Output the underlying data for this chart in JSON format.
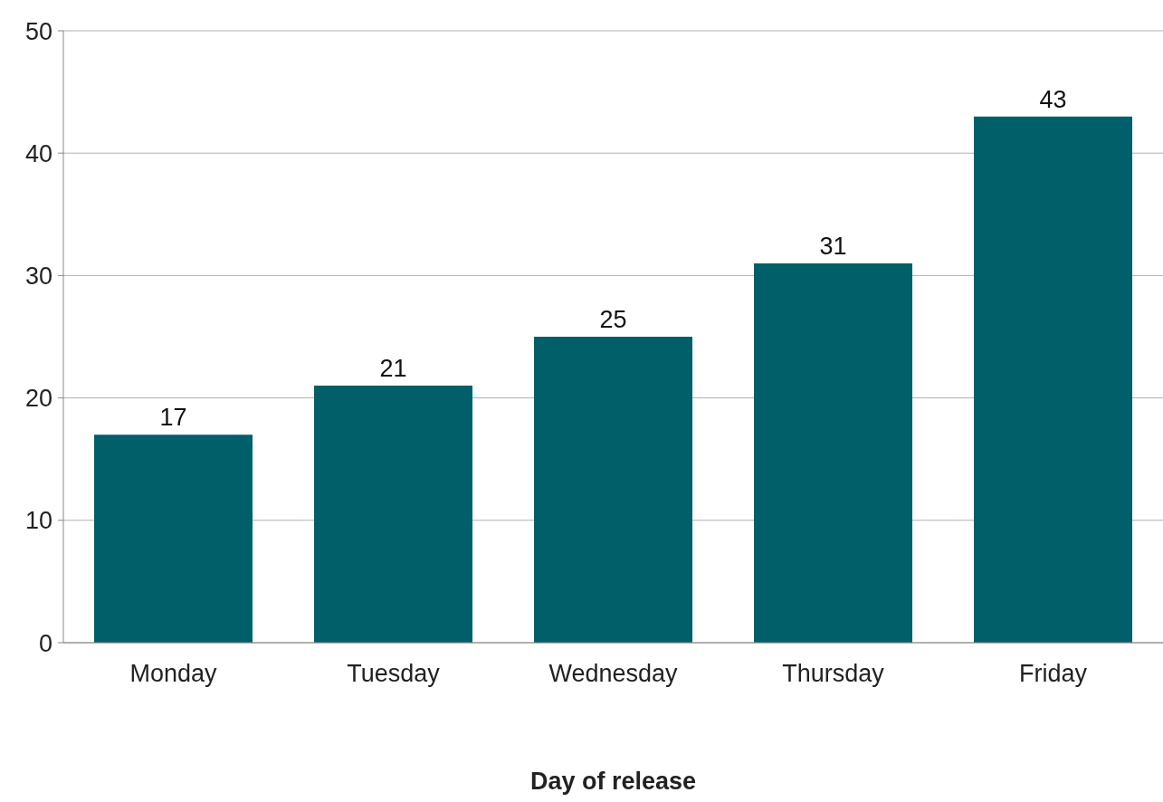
{
  "chart_data": {
    "type": "bar",
    "xlabel": "Day of release",
    "categories": [
      "Monday",
      "Tuesday",
      "Wednesday",
      "Thursday",
      "Friday"
    ],
    "values": [
      17,
      21,
      25,
      31,
      43
    ],
    "color": "#005f69",
    "ylim": [
      0,
      50
    ],
    "yticks": [
      0,
      10,
      20,
      30,
      40,
      50
    ],
    "grid": "y",
    "data_labels": true
  }
}
